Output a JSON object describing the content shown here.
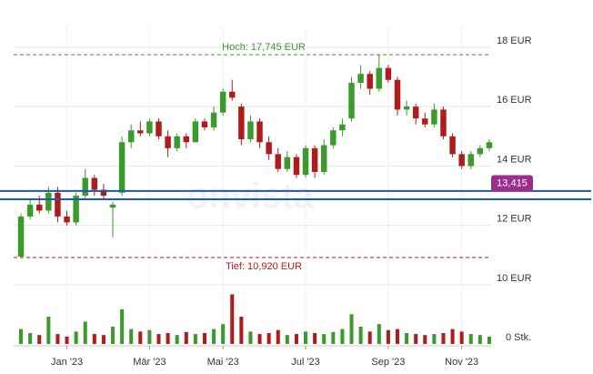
{
  "chart_data": {
    "type": "candlestick",
    "watermark": "onvista",
    "categories": [
      null,
      null,
      null,
      null,
      null,
      "Jan '23",
      null,
      null,
      null,
      null,
      null,
      null,
      null,
      null,
      "Mär '23",
      null,
      null,
      null,
      null,
      null,
      null,
      null,
      "Mai '23",
      null,
      null,
      null,
      null,
      null,
      null,
      null,
      null,
      "Jul '23",
      null,
      null,
      null,
      null,
      null,
      null,
      null,
      null,
      "Sep '23",
      null,
      null,
      null,
      null,
      null,
      null,
      null,
      "Nov '23",
      null,
      null,
      null
    ],
    "series": [
      {
        "open": [
          10.95,
          12.3,
          12.7,
          12.5,
          13.1,
          12.3,
          12.1,
          13.0,
          13.6,
          13.2,
          12.6,
          13.1,
          14.8,
          15.2,
          15.1,
          15.5,
          15.0,
          14.6,
          15.0,
          14.8,
          15.5,
          15.3,
          15.8,
          16.5,
          16.0,
          14.9,
          15.5,
          14.8,
          14.4,
          13.9,
          14.3,
          13.7,
          14.6,
          13.8,
          14.7,
          15.2,
          15.6,
          16.8,
          17.1,
          16.6,
          17.3,
          16.9,
          15.9,
          16.0,
          15.6,
          15.4,
          15.9,
          15.0,
          14.4,
          14.0,
          14.4,
          14.6
        ],
        "high": [
          12.4,
          12.9,
          13.0,
          13.3,
          13.3,
          12.5,
          13.1,
          13.9,
          13.7,
          13.4,
          12.8,
          15.0,
          15.4,
          15.5,
          15.6,
          15.6,
          15.2,
          15.1,
          15.1,
          15.6,
          15.6,
          16.0,
          16.6,
          16.9,
          16.1,
          15.7,
          15.6,
          15.0,
          14.6,
          14.5,
          14.4,
          14.7,
          14.7,
          14.9,
          15.3,
          15.6,
          17.0,
          17.4,
          17.2,
          17.745,
          17.4,
          17.0,
          16.2,
          16.1,
          15.8,
          16.1,
          16.0,
          15.1,
          14.5,
          14.5,
          14.7,
          14.9
        ],
        "low": [
          10.92,
          12.2,
          12.4,
          12.4,
          12.1,
          12.0,
          12.0,
          12.9,
          13.0,
          12.9,
          11.6,
          13.0,
          14.6,
          15.0,
          15.0,
          14.9,
          14.3,
          14.5,
          14.6,
          14.8,
          15.2,
          15.2,
          15.7,
          16.2,
          14.7,
          14.8,
          14.6,
          14.2,
          13.8,
          13.8,
          13.6,
          13.6,
          13.6,
          13.7,
          14.6,
          15.0,
          15.5,
          16.6,
          16.4,
          16.5,
          16.8,
          15.7,
          15.7,
          15.4,
          15.3,
          15.3,
          14.9,
          14.3,
          13.9,
          13.9,
          14.3,
          14.5
        ],
        "close": [
          12.3,
          12.7,
          12.5,
          13.1,
          12.3,
          12.1,
          13.0,
          13.6,
          13.2,
          13.0,
          12.7,
          14.8,
          15.2,
          15.1,
          15.5,
          15.0,
          14.6,
          15.0,
          14.8,
          15.5,
          15.3,
          15.8,
          16.5,
          16.3,
          14.9,
          15.5,
          14.8,
          14.4,
          13.9,
          14.3,
          13.7,
          14.6,
          13.8,
          14.7,
          15.2,
          15.4,
          16.8,
          17.1,
          16.6,
          17.3,
          16.9,
          15.9,
          16.0,
          15.6,
          15.4,
          15.9,
          15.0,
          14.4,
          14.0,
          14.4,
          14.6,
          14.8
        ],
        "volume": [
          30,
          22,
          18,
          55,
          20,
          15,
          25,
          45,
          20,
          18,
          35,
          70,
          30,
          25,
          28,
          20,
          22,
          18,
          24,
          20,
          22,
          30,
          40,
          100,
          55,
          25,
          20,
          22,
          28,
          18,
          20,
          25,
          22,
          20,
          24,
          30,
          60,
          35,
          25,
          40,
          28,
          30,
          22,
          20,
          18,
          20,
          22,
          30,
          25,
          20,
          18,
          15
        ]
      }
    ],
    "up_color": "#3a9a2b",
    "down_color": "#b01c1c",
    "ylim": [
      10,
      18.7
    ],
    "yticks": [
      {
        "value": 10,
        "label": "10 EUR"
      },
      {
        "value": 12,
        "label": "12 EUR"
      },
      {
        "value": 14,
        "label": "14 EUR"
      },
      {
        "value": 16,
        "label": "16 EUR"
      },
      {
        "value": 18,
        "label": "18 EUR"
      }
    ],
    "volume_ylim": [
      0,
      110
    ],
    "volume_ticks": [
      {
        "value": 0,
        "label": "0 Stk."
      }
    ],
    "high_line": {
      "value": 17.745,
      "label": "Hoch: 17,745 EUR",
      "color": "#3a9a2b"
    },
    "low_line": {
      "value": 10.92,
      "label": "Tief: 10,920 EUR",
      "color": "#b01c1c"
    },
    "hlines": {
      "values": [
        13.16,
        12.88
      ],
      "color": "#1f5aa6"
    },
    "last_price": {
      "value": 13.415,
      "label": "13,415",
      "color": "#9b2d8e"
    }
  }
}
